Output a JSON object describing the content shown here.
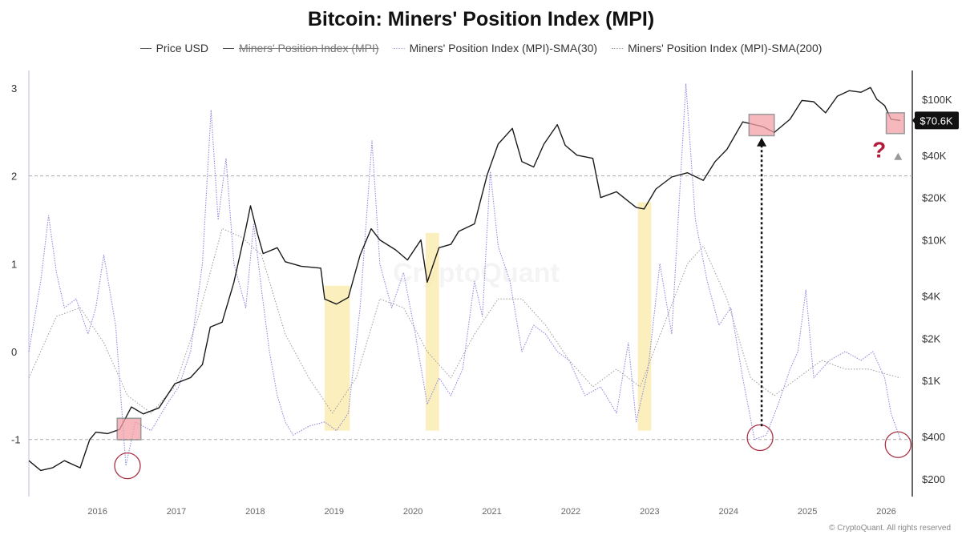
{
  "chart_data": {
    "type": "line",
    "title": "Bitcoin: Miners' Position Index (MPI)",
    "legend": [
      {
        "name": "Price USD",
        "visible": true
      },
      {
        "name": "Miners' Position Index (MPI)",
        "visible": false
      },
      {
        "name": "Miners' Position Index (MPI)-SMA(30)",
        "visible": true
      },
      {
        "name": "Miners' Position Index (MPI)-SMA(200)",
        "visible": true
      }
    ],
    "x_ticks": [
      "2016",
      "2017",
      "2018",
      "2019",
      "2020",
      "2021",
      "2022",
      "2023",
      "2024",
      "2025",
      "2026"
    ],
    "xlim": [
      2015.15,
      2026.35
    ],
    "left_axis": {
      "ticks": [
        "3",
        "2",
        "1",
        "0",
        "-1"
      ],
      "range": [
        -1.65,
        3.2
      ],
      "reference_lines": [
        2,
        -1
      ]
    },
    "right_axis": {
      "scale": "log",
      "ticks": [
        "$100K",
        "$40K",
        "$20K",
        "$10K",
        "$4K",
        "$2K",
        "$1K",
        "$400",
        "$200"
      ],
      "range": [
        150,
        160000
      ]
    },
    "current_price_label": "$70.6K",
    "series": [
      {
        "name": "Price USD",
        "axis": "right",
        "points": [
          [
            2015.15,
            270
          ],
          [
            2015.3,
            230
          ],
          [
            2015.45,
            240
          ],
          [
            2015.6,
            270
          ],
          [
            2015.8,
            240
          ],
          [
            2015.92,
            380
          ],
          [
            2016.0,
            430
          ],
          [
            2016.15,
            420
          ],
          [
            2016.3,
            450
          ],
          [
            2016.45,
            650
          ],
          [
            2016.6,
            580
          ],
          [
            2016.8,
            640
          ],
          [
            2017.0,
            950
          ],
          [
            2017.2,
            1050
          ],
          [
            2017.35,
            1300
          ],
          [
            2017.45,
            2400
          ],
          [
            2017.6,
            2600
          ],
          [
            2017.75,
            5000
          ],
          [
            2017.9,
            12000
          ],
          [
            2017.96,
            17500
          ],
          [
            2018.05,
            11000
          ],
          [
            2018.12,
            8000
          ],
          [
            2018.3,
            8800
          ],
          [
            2018.4,
            7000
          ],
          [
            2018.6,
            6500
          ],
          [
            2018.85,
            6300
          ],
          [
            2018.9,
            3800
          ],
          [
            2019.05,
            3500
          ],
          [
            2019.2,
            3900
          ],
          [
            2019.35,
            7800
          ],
          [
            2019.49,
            12000
          ],
          [
            2019.6,
            10000
          ],
          [
            2019.8,
            8500
          ],
          [
            2019.95,
            7200
          ],
          [
            2020.12,
            10000
          ],
          [
            2020.2,
            5000
          ],
          [
            2020.35,
            8800
          ],
          [
            2020.5,
            9300
          ],
          [
            2020.6,
            11500
          ],
          [
            2020.8,
            13000
          ],
          [
            2020.96,
            29000
          ],
          [
            2021.1,
            48000
          ],
          [
            2021.28,
            62000
          ],
          [
            2021.4,
            36000
          ],
          [
            2021.55,
            33000
          ],
          [
            2021.68,
            48000
          ],
          [
            2021.85,
            66000
          ],
          [
            2021.95,
            47000
          ],
          [
            2022.1,
            40000
          ],
          [
            2022.3,
            38000
          ],
          [
            2022.4,
            20000
          ],
          [
            2022.6,
            22000
          ],
          [
            2022.85,
            17000
          ],
          [
            2022.95,
            16600
          ],
          [
            2023.1,
            23000
          ],
          [
            2023.3,
            28000
          ],
          [
            2023.5,
            30000
          ],
          [
            2023.7,
            26500
          ],
          [
            2023.85,
            36000
          ],
          [
            2024.0,
            44000
          ],
          [
            2024.2,
            69000
          ],
          [
            2024.45,
            64000
          ],
          [
            2024.6,
            58000
          ],
          [
            2024.8,
            72000
          ],
          [
            2024.95,
            98000
          ],
          [
            2025.1,
            96000
          ],
          [
            2025.25,
            80000
          ],
          [
            2025.4,
            105000
          ],
          [
            2025.55,
            115000
          ],
          [
            2025.7,
            112000
          ],
          [
            2025.82,
            121000
          ],
          [
            2025.9,
            100000
          ],
          [
            2026.0,
            90000
          ],
          [
            2026.08,
            72000
          ],
          [
            2026.2,
            70600
          ]
        ]
      },
      {
        "name": "Miners' Position Index (MPI)-SMA(30)",
        "axis": "left",
        "points": [
          [
            2015.15,
            0.0
          ],
          [
            2015.3,
            0.8
          ],
          [
            2015.4,
            1.55
          ],
          [
            2015.5,
            0.9
          ],
          [
            2015.6,
            0.5
          ],
          [
            2015.75,
            0.6
          ],
          [
            2015.9,
            0.2
          ],
          [
            2016.0,
            0.5
          ],
          [
            2016.1,
            1.1
          ],
          [
            2016.25,
            0.3
          ],
          [
            2016.38,
            -1.3
          ],
          [
            2016.5,
            -0.8
          ],
          [
            2016.7,
            -0.9
          ],
          [
            2016.9,
            -0.6
          ],
          [
            2017.05,
            -0.4
          ],
          [
            2017.2,
            0.0
          ],
          [
            2017.35,
            1.0
          ],
          [
            2017.46,
            2.75
          ],
          [
            2017.55,
            1.5
          ],
          [
            2017.65,
            2.2
          ],
          [
            2017.75,
            1.0
          ],
          [
            2017.9,
            0.5
          ],
          [
            2018.0,
            1.45
          ],
          [
            2018.1,
            0.7
          ],
          [
            2018.2,
            0.0
          ],
          [
            2018.3,
            -0.5
          ],
          [
            2018.4,
            -0.8
          ],
          [
            2018.5,
            -0.95
          ],
          [
            2018.7,
            -0.85
          ],
          [
            2018.9,
            -0.8
          ],
          [
            2019.05,
            -0.9
          ],
          [
            2019.2,
            -0.7
          ],
          [
            2019.35,
            0.5
          ],
          [
            2019.5,
            2.4
          ],
          [
            2019.6,
            1.0
          ],
          [
            2019.75,
            0.5
          ],
          [
            2019.9,
            0.9
          ],
          [
            2020.05,
            0.2
          ],
          [
            2020.2,
            -0.6
          ],
          [
            2020.35,
            -0.3
          ],
          [
            2020.5,
            -0.5
          ],
          [
            2020.65,
            -0.2
          ],
          [
            2020.8,
            0.8
          ],
          [
            2020.9,
            0.4
          ],
          [
            2021.0,
            2.05
          ],
          [
            2021.1,
            1.2
          ],
          [
            2021.25,
            0.8
          ],
          [
            2021.4,
            0.0
          ],
          [
            2021.55,
            0.3
          ],
          [
            2021.7,
            0.2
          ],
          [
            2021.85,
            0.0
          ],
          [
            2022.0,
            -0.1
          ],
          [
            2022.2,
            -0.5
          ],
          [
            2022.4,
            -0.4
          ],
          [
            2022.6,
            -0.7
          ],
          [
            2022.75,
            0.1
          ],
          [
            2022.85,
            -0.8
          ],
          [
            2023.0,
            -0.2
          ],
          [
            2023.15,
            1.0
          ],
          [
            2023.3,
            0.2
          ],
          [
            2023.48,
            3.05
          ],
          [
            2023.6,
            1.5
          ],
          [
            2023.75,
            0.8
          ],
          [
            2023.9,
            0.3
          ],
          [
            2024.05,
            0.5
          ],
          [
            2024.2,
            -0.3
          ],
          [
            2024.35,
            -1.0
          ],
          [
            2024.5,
            -0.95
          ],
          [
            2024.65,
            -0.6
          ],
          [
            2024.8,
            -0.2
          ],
          [
            2024.9,
            0.0
          ],
          [
            2025.0,
            0.7
          ],
          [
            2025.1,
            -0.3
          ],
          [
            2025.3,
            -0.1
          ],
          [
            2025.5,
            0.0
          ],
          [
            2025.7,
            -0.1
          ],
          [
            2025.85,
            0.0
          ],
          [
            2026.0,
            -0.3
          ],
          [
            2026.08,
            -0.7
          ],
          [
            2026.2,
            -1.0
          ]
        ]
      },
      {
        "name": "Miners' Position Index (MPI)-SMA(200)",
        "axis": "left",
        "points": [
          [
            2015.15,
            -0.3
          ],
          [
            2015.5,
            0.4
          ],
          [
            2015.8,
            0.5
          ],
          [
            2016.1,
            0.1
          ],
          [
            2016.4,
            -0.5
          ],
          [
            2016.7,
            -0.7
          ],
          [
            2017.0,
            -0.4
          ],
          [
            2017.3,
            0.4
          ],
          [
            2017.6,
            1.4
          ],
          [
            2017.85,
            1.3
          ],
          [
            2018.1,
            1.1
          ],
          [
            2018.4,
            0.2
          ],
          [
            2018.7,
            -0.3
          ],
          [
            2019.0,
            -0.7
          ],
          [
            2019.3,
            -0.3
          ],
          [
            2019.6,
            0.6
          ],
          [
            2019.9,
            0.5
          ],
          [
            2020.2,
            0.0
          ],
          [
            2020.5,
            -0.3
          ],
          [
            2020.8,
            0.2
          ],
          [
            2021.1,
            0.6
          ],
          [
            2021.4,
            0.6
          ],
          [
            2021.7,
            0.3
          ],
          [
            2022.0,
            -0.1
          ],
          [
            2022.3,
            -0.4
          ],
          [
            2022.6,
            -0.2
          ],
          [
            2022.9,
            -0.4
          ],
          [
            2023.2,
            0.3
          ],
          [
            2023.5,
            1.0
          ],
          [
            2023.7,
            1.2
          ],
          [
            2024.0,
            0.6
          ],
          [
            2024.3,
            -0.3
          ],
          [
            2024.6,
            -0.5
          ],
          [
            2024.9,
            -0.3
          ],
          [
            2025.2,
            -0.1
          ],
          [
            2025.5,
            -0.2
          ],
          [
            2025.8,
            -0.2
          ],
          [
            2026.2,
            -0.3
          ]
        ]
      }
    ],
    "highlight_bands": [
      {
        "x0": 2018.9,
        "x1": 2019.22,
        "y0": -0.9,
        "y1": 0.75
      },
      {
        "x0": 2020.18,
        "x1": 2020.35,
        "y0": -0.9,
        "y1": 1.35
      },
      {
        "x0": 2022.87,
        "x1": 2023.04,
        "y0": -0.9,
        "y1": 1.7
      }
    ],
    "red_boxes": [
      {
        "x0": 2016.27,
        "x1": 2016.57,
        "price_lo": 380,
        "price_hi": 540
      },
      {
        "x0": 2024.28,
        "x1": 2024.6,
        "price_lo": 55000,
        "price_hi": 78000
      },
      {
        "x0": 2026.02,
        "x1": 2026.25,
        "price_lo": 57000,
        "price_hi": 80000
      }
    ],
    "circles": [
      {
        "x": 2016.4,
        "y": -1.3
      },
      {
        "x": 2024.42,
        "y": -0.98
      },
      {
        "x": 2026.17,
        "y": -1.06
      }
    ],
    "annotations": [
      {
        "type": "arrow",
        "x": 2024.44,
        "from_y": -0.85,
        "to_price": 52000
      },
      {
        "type": "text",
        "text": "?",
        "x": 2025.93,
        "price": 44000
      },
      {
        "type": "arrowhead",
        "x": 2026.17,
        "price": 40000
      }
    ]
  },
  "watermark": "CryptoQuant",
  "footer": "© CryptoQuant. All rights reserved"
}
